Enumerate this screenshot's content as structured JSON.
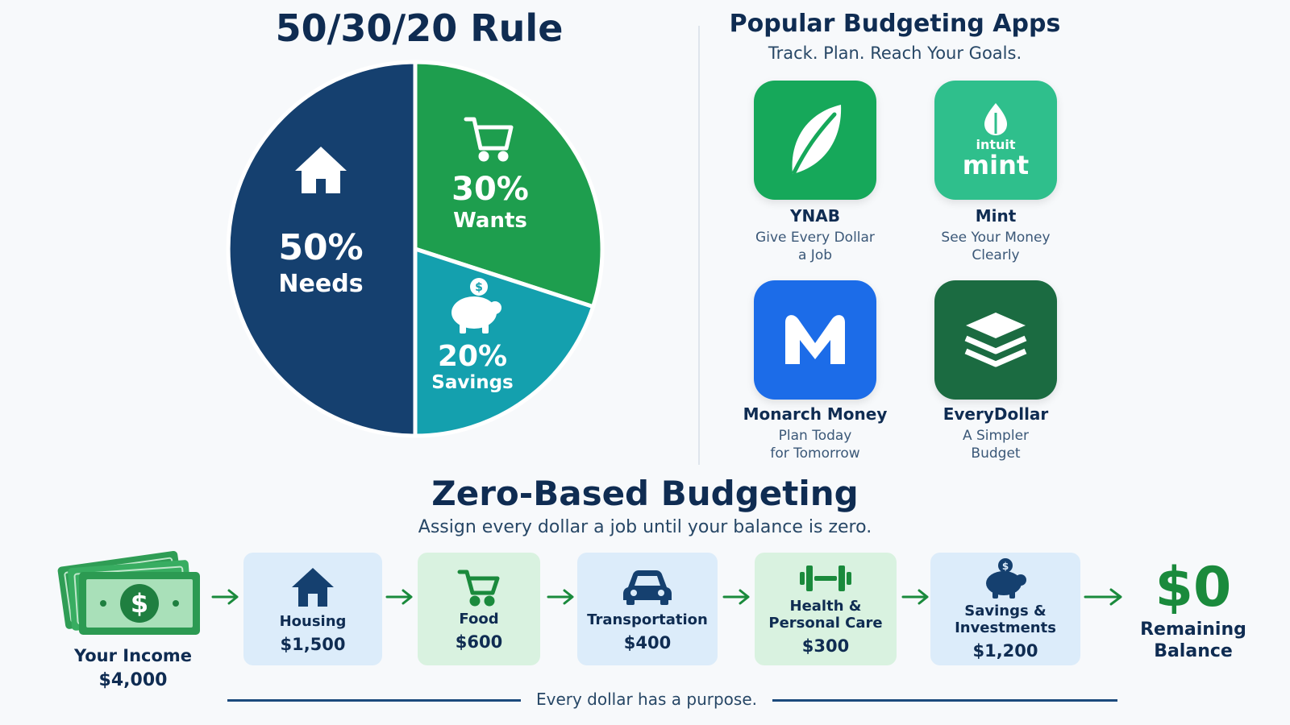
{
  "rule": {
    "title": "50/30/20 Rule",
    "chart_data": {
      "type": "pie",
      "title": "50/30/20 Rule",
      "categories": [
        "Needs",
        "Wants",
        "Savings"
      ],
      "values": [
        50,
        30,
        20
      ],
      "value_labels": [
        "50%",
        "30%",
        "20%"
      ],
      "colors": [
        "#15406f",
        "#1e9e4e",
        "#14a0ae"
      ],
      "icons": [
        "house-icon",
        "shopping-cart-icon",
        "piggy-bank-icon"
      ]
    }
  },
  "apps": {
    "title": "Popular Budgeting Apps",
    "subtitle": "Track. Plan. Reach Your Goals.",
    "items": [
      {
        "name": "YNAB",
        "tag1": "Give Every Dollar",
        "tag2": "a Job",
        "color": "#16a85a",
        "icon": "leaf-icon"
      },
      {
        "name": "Mint",
        "tag1": "See Your Money",
        "tag2": "Clearly",
        "color": "#2fbf8c",
        "icon": "mint-logo-icon",
        "logo_top": "intuit",
        "logo_main": "mint"
      },
      {
        "name": "Monarch Money",
        "tag1": "Plan Today",
        "tag2": "for Tomorrow",
        "color": "#1c6ce8",
        "icon": "monarch-m-icon"
      },
      {
        "name": "EveryDollar",
        "tag1": "A Simpler",
        "tag2": "Budget",
        "color": "#1b6b41",
        "icon": "stacked-layers-icon"
      }
    ]
  },
  "zero": {
    "title": "Zero-Based Budgeting",
    "subtitle": "Assign every dollar a job until your balance is zero.",
    "income_label": "Your Income",
    "income_amount": "$4,000",
    "steps": [
      {
        "line1": "Housing",
        "line2": "",
        "amount": "$1,500",
        "icon": "house-icon"
      },
      {
        "line1": "Food",
        "line2": "",
        "amount": "$600",
        "icon": "shopping-cart-icon"
      },
      {
        "line1": "Transportation",
        "line2": "",
        "amount": "$400",
        "icon": "car-icon"
      },
      {
        "line1": "Health &",
        "line2": "Personal Care",
        "amount": "$300",
        "icon": "dumbbell-icon"
      },
      {
        "line1": "Savings &",
        "line2": "Investments",
        "amount": "$1,200",
        "icon": "piggy-bank-icon"
      }
    ],
    "result_amount": "$0",
    "result_line1": "Remaining",
    "result_line2": "Balance",
    "footer": "Every dollar has a purpose."
  }
}
